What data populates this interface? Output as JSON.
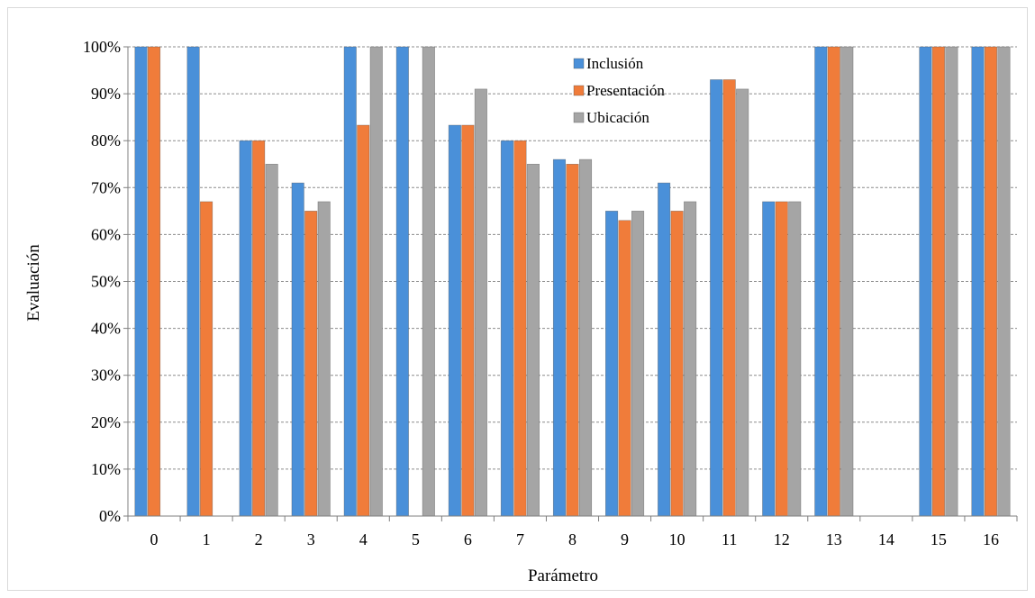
{
  "chart_data": {
    "type": "bar",
    "title": "",
    "xlabel": "Parámetro",
    "ylabel": "Evaluación",
    "categories": [
      "0",
      "1",
      "2",
      "3",
      "4",
      "5",
      "6",
      "7",
      "8",
      "9",
      "10",
      "11",
      "12",
      "13",
      "14",
      "15",
      "16"
    ],
    "ylim": [
      0,
      100
    ],
    "yticks": [
      0,
      10,
      20,
      30,
      40,
      50,
      60,
      70,
      80,
      90,
      100
    ],
    "ytick_labels": [
      "0%",
      "10%",
      "20%",
      "30%",
      "40%",
      "50%",
      "60%",
      "70%",
      "80%",
      "90%",
      "100%"
    ],
    "grid": "horizontal dashed",
    "legend_position": "top-center",
    "series": [
      {
        "name": "Inclusión",
        "color": "#4a90d9",
        "values": [
          100,
          100,
          80,
          71,
          100,
          100,
          83.3,
          80,
          76,
          65,
          71,
          93,
          67,
          100,
          0,
          100,
          100
        ]
      },
      {
        "name": "Presentación",
        "color": "#f07c3a",
        "values": [
          100,
          67,
          80,
          65,
          83.3,
          0,
          83.3,
          80,
          75,
          63,
          65,
          93,
          67,
          100,
          0,
          100,
          100
        ]
      },
      {
        "name": "Ubicación",
        "color": "#a5a5a5",
        "values": [
          0,
          0,
          75,
          67,
          100,
          100,
          91,
          75,
          76,
          65,
          67,
          91,
          67,
          100,
          0,
          100,
          100
        ]
      }
    ]
  }
}
